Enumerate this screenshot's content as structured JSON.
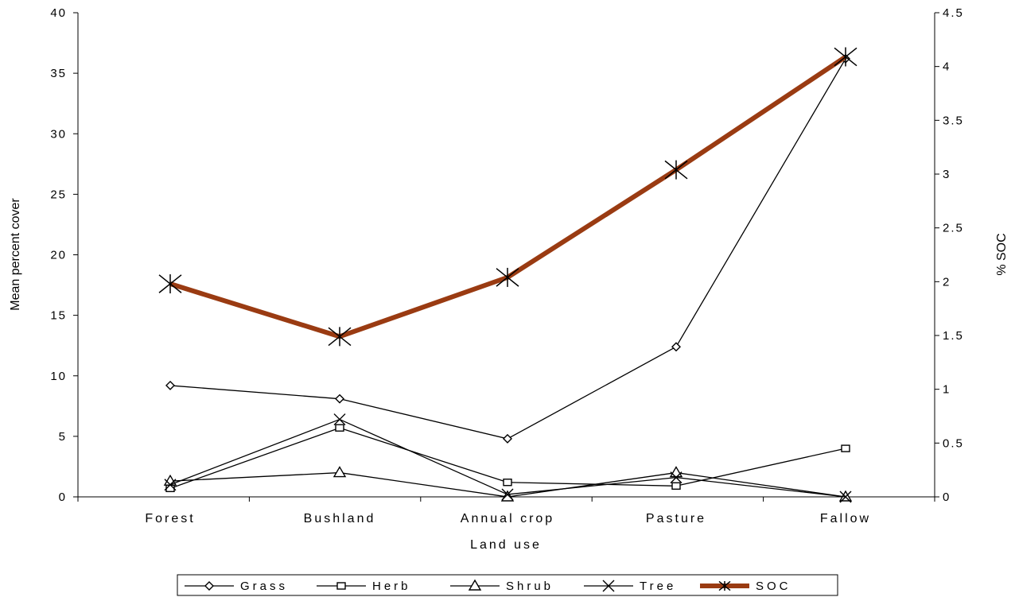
{
  "chart_data": {
    "type": "line",
    "title": "",
    "xlabel": "Land use",
    "ylabel": "Mean percent cover",
    "y2label": "% SOC",
    "categories": [
      "Forest",
      "Bushland",
      "Annual crop",
      "Pasture",
      "Fallow"
    ],
    "ylim": [
      0,
      40
    ],
    "y2lim": [
      0,
      4.5
    ],
    "y_ticks": [
      "0",
      "5",
      "10",
      "15",
      "20",
      "25",
      "30",
      "35",
      "40"
    ],
    "y2_ticks": [
      "0",
      "0.5",
      "1",
      "1.5",
      "2",
      "2.5",
      "3",
      "3.5",
      "4",
      "4.5"
    ],
    "grid": false,
    "legend_position": "bottom",
    "series": [
      {
        "name": "Grass",
        "axis": "left",
        "marker": "diamond",
        "color": "#000000",
        "values": [
          9.2,
          8.1,
          4.8,
          12.4,
          36.2
        ]
      },
      {
        "name": "Herb",
        "axis": "left",
        "marker": "square",
        "color": "#000000",
        "values": [
          0.7,
          5.7,
          1.2,
          0.9,
          4.0
        ]
      },
      {
        "name": "Shrub",
        "axis": "left",
        "marker": "triangle",
        "color": "#000000",
        "values": [
          1.3,
          2.0,
          0.0,
          2.0,
          0.0
        ]
      },
      {
        "name": "Tree",
        "axis": "left",
        "marker": "x",
        "color": "#000000",
        "values": [
          1.0,
          6.4,
          0.2,
          1.6,
          0.0
        ]
      },
      {
        "name": "SOC",
        "axis": "right",
        "marker": "asterisk",
        "color": "#9a3b12",
        "values": [
          1.98,
          1.49,
          2.04,
          3.04,
          4.09
        ]
      }
    ]
  }
}
